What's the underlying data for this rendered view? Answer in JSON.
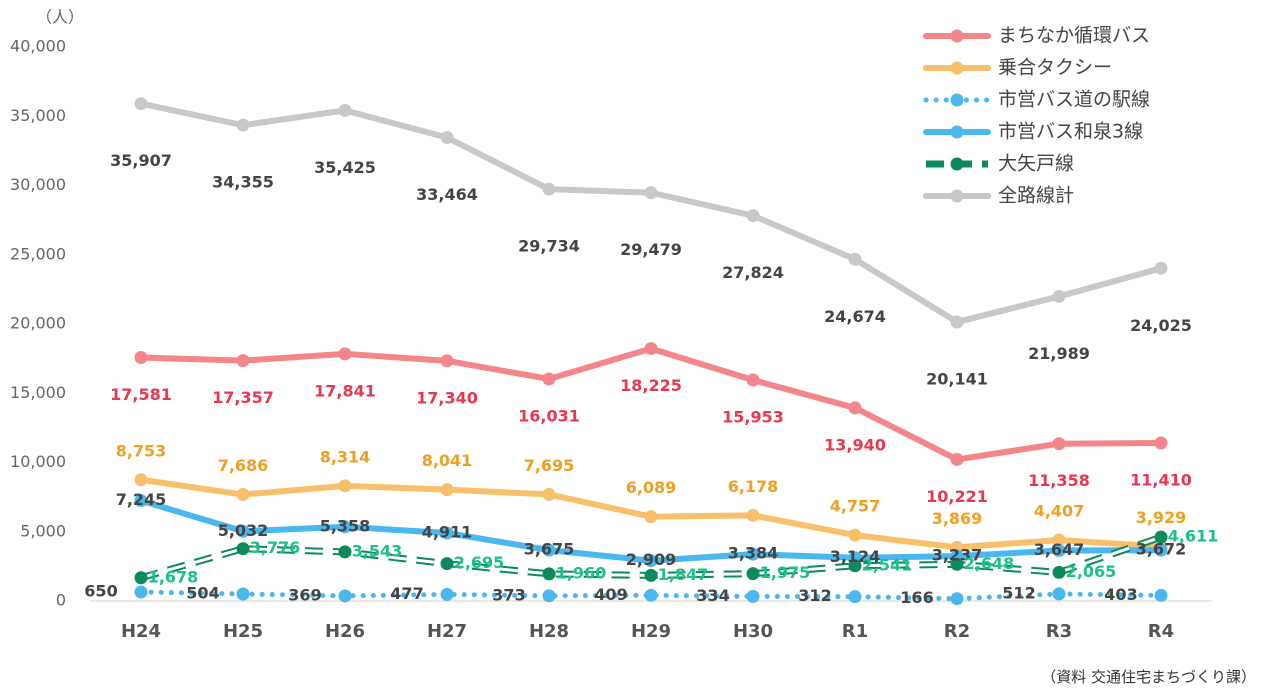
{
  "chart_data": {
    "type": "line",
    "y_label": "（人）",
    "source": "（資料 交通住宅まちづくり課）",
    "categories": [
      "H24",
      "H25",
      "H26",
      "H27",
      "H28",
      "H29",
      "H30",
      "R1",
      "R2",
      "R3",
      "R4"
    ],
    "ylim": [
      0,
      40000
    ],
    "yticks": [
      0,
      {
        "value": 5000,
        "label": "5,000"
      },
      {
        "value": 10000,
        "label": "10,000"
      },
      {
        "value": 15000,
        "label": "15,000"
      },
      {
        "value": 20000,
        "label": "20,000"
      },
      {
        "value": 25000,
        "label": "25,000"
      },
      {
        "value": 30000,
        "label": "30,000"
      },
      {
        "value": 35000,
        "label": "35,000"
      },
      {
        "value": 40000,
        "label": "40,000"
      }
    ],
    "legend": "top-right",
    "series": [
      {
        "name": "まちなか循環バス",
        "color": "#f4858a",
        "label_color": "#e8384f",
        "style": "solid",
        "values": [
          17581,
          17357,
          17841,
          17340,
          16031,
          18225,
          15953,
          13940,
          10221,
          11358,
          11410
        ],
        "value_labels": [
          "17,581",
          "17,357",
          "17,841",
          "17,340",
          "16,031",
          "18,225",
          "15,953",
          "13,940",
          "10,221",
          "11,358",
          "11,410"
        ]
      },
      {
        "name": "乗合タクシー",
        "color": "#f9c06b",
        "label_color": "#f0a020",
        "style": "solid",
        "values": [
          8753,
          7686,
          8314,
          8041,
          7695,
          6089,
          6178,
          4757,
          3869,
          4407,
          3929
        ],
        "value_labels": [
          "8,753",
          "7,686",
          "8,314",
          "8,041",
          "7,695",
          "6,089",
          "6,178",
          "4,757",
          "3,869",
          "4,407",
          "3,929"
        ]
      },
      {
        "name": "市営バス道の駅線",
        "color": "#4ab8ee",
        "label_color": "#444444",
        "style": "dotted",
        "values": [
          650,
          504,
          369,
          477,
          373,
          409,
          334,
          312,
          166,
          512,
          403
        ],
        "value_labels": [
          "650",
          "504",
          "369",
          "477",
          "373",
          "409",
          "334",
          "312",
          "166",
          "512",
          "403"
        ]
      },
      {
        "name": "市営バス和泉3線",
        "color": "#4ab8ee",
        "label_color": "#444444",
        "style": "solid",
        "values": [
          7245,
          5032,
          5358,
          4911,
          3675,
          2909,
          3384,
          3124,
          3237,
          3647,
          3672
        ],
        "value_labels": [
          "7,245",
          "5,032",
          "5,358",
          "4,911",
          "3,675",
          "2,909",
          "3,384",
          "3,124",
          "3,237",
          "3,647",
          "3,672"
        ]
      },
      {
        "name": "大矢戸線",
        "color": "#0b8a5a",
        "label_color": "#1ec08a",
        "style": "dashed",
        "values": [
          1678,
          3776,
          3543,
          2695,
          1960,
          1847,
          1975,
          2541,
          2648,
          2065,
          4611
        ],
        "value_labels": [
          "1,678",
          "3,776",
          "3,543",
          "2,695",
          "1,960",
          "1,847",
          "1,975",
          "2,541",
          "2,648",
          "2,065",
          "4,611"
        ]
      },
      {
        "name": "全路線計",
        "color": "#c8c8c8",
        "label_color": "#444444",
        "style": "solid",
        "values": [
          35907,
          34355,
          35425,
          33464,
          29734,
          29479,
          27824,
          24674,
          20141,
          21989,
          24025
        ],
        "value_labels": [
          "35,907",
          "34,355",
          "35,425",
          "33,464",
          "29,734",
          "29,479",
          "27,824",
          "24,674",
          "20,141",
          "21,989",
          "24,025"
        ]
      }
    ]
  }
}
